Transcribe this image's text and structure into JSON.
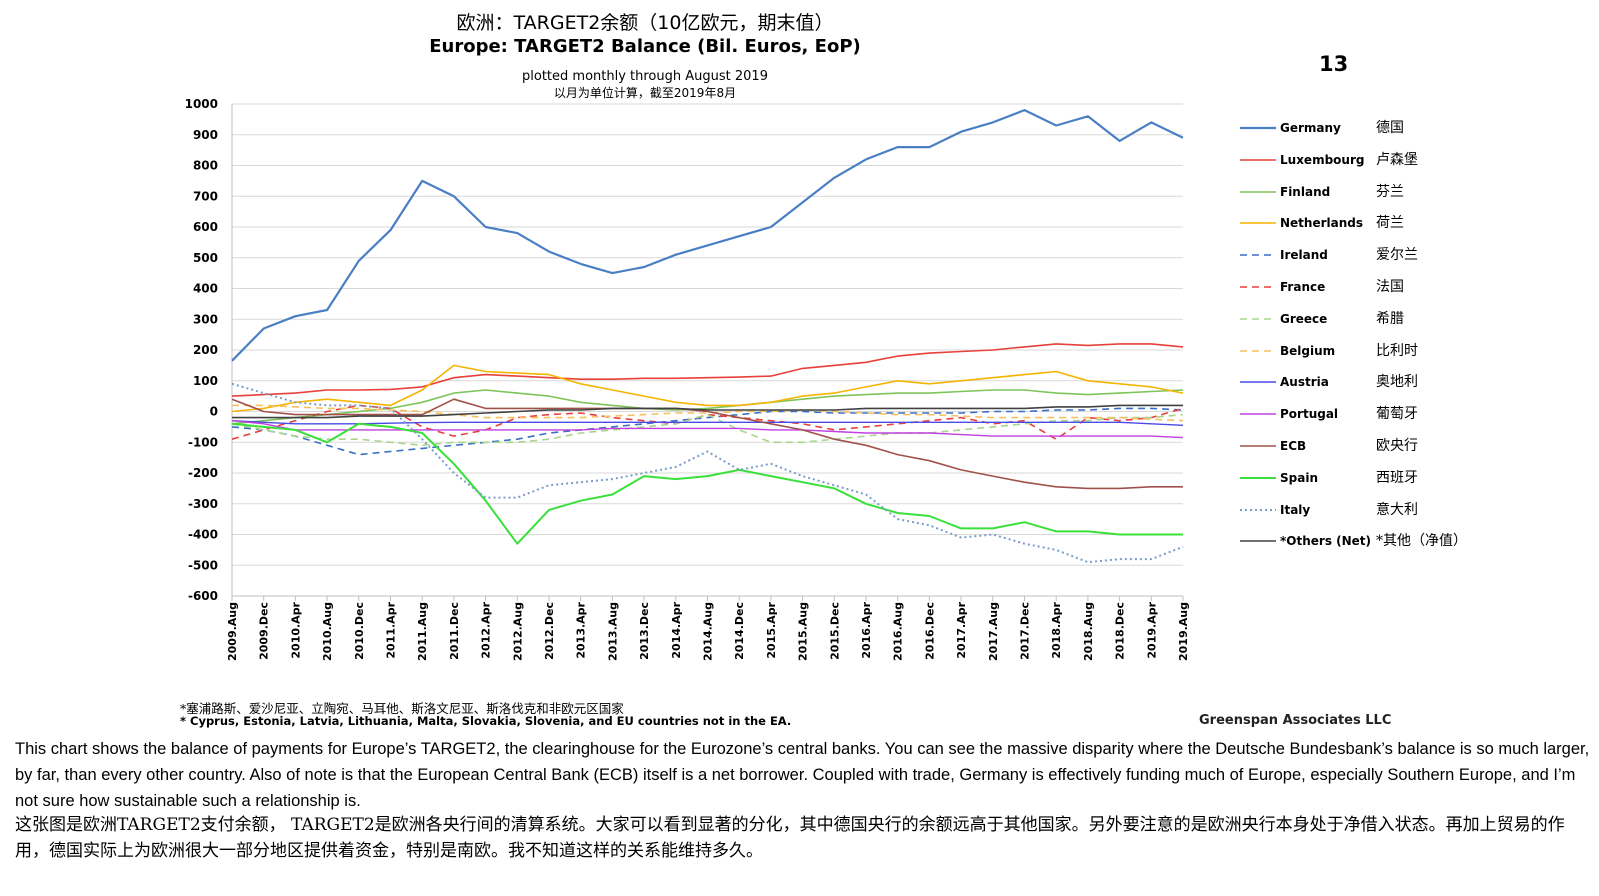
{
  "header": {
    "title_cn": "欧洲：TARGET2余额（10亿欧元，期末值）",
    "title_en": "Europe: TARGET2 Balance (Bil. Euros, EoP)",
    "subtitle_en": "plotted monthly through August 2019",
    "subtitle_cn": "以月为单位计算，截至2019年8月",
    "page_number": "13"
  },
  "chart_data": {
    "type": "line",
    "title": "Europe: TARGET2 Balance (Bil. Euros, EoP)",
    "ylim": [
      -600,
      1000
    ],
    "yticks": [
      1000,
      900,
      800,
      700,
      600,
      500,
      400,
      300,
      200,
      100,
      0,
      -100,
      -200,
      -300,
      -400,
      -500,
      -600
    ],
    "x_tick_labels": [
      "2009.Aug",
      "2009.Dec",
      "2010.Apr",
      "2010.Aug",
      "2010.Dec",
      "2011.Apr",
      "2011.Aug",
      "2011.Dec",
      "2012.Apr",
      "2012.Aug",
      "2012.Dec",
      "2013.Apr",
      "2013.Aug",
      "2013.Dec",
      "2014.Apr",
      "2014.Aug",
      "2014.Dec",
      "2015.Apr",
      "2015.Aug",
      "2015.Dec",
      "2016.Apr",
      "2016.Aug",
      "2016.Dec",
      "2017.Apr",
      "2017.Aug",
      "2017.Dec",
      "2018.Apr",
      "2018.Aug",
      "2018.Dec",
      "2019.Apr",
      "2019.Aug"
    ],
    "grid": "horizontal",
    "legend_position": "right",
    "series": [
      {
        "name": "Germany",
        "name_cn": "德国",
        "color": "#4a7fc4",
        "dash": "solid",
        "width": 2.2,
        "values": [
          165,
          270,
          310,
          330,
          490,
          590,
          750,
          700,
          600,
          580,
          520,
          480,
          450,
          470,
          510,
          540,
          570,
          600,
          680,
          760,
          820,
          860,
          860,
          910,
          940,
          980,
          930,
          960,
          880,
          940,
          890
        ]
      },
      {
        "name": "Luxembourg",
        "name_cn": "卢森堡",
        "color": "#e8403a",
        "dash": "solid",
        "width": 1.6,
        "values": [
          50,
          55,
          60,
          70,
          70,
          72,
          80,
          110,
          120,
          115,
          110,
          105,
          105,
          108,
          108,
          110,
          112,
          115,
          140,
          150,
          160,
          180,
          190,
          195,
          200,
          210,
          220,
          215,
          220,
          220,
          210
        ]
      },
      {
        "name": "Finland",
        "name_cn": "芬兰",
        "color": "#7dc45a",
        "dash": "solid",
        "width": 1.6,
        "values": [
          -40,
          -30,
          -20,
          -10,
          0,
          10,
          30,
          60,
          70,
          60,
          50,
          30,
          20,
          10,
          5,
          10,
          20,
          30,
          40,
          50,
          55,
          60,
          60,
          65,
          70,
          70,
          60,
          55,
          60,
          65,
          70
        ]
      },
      {
        "name": "Netherlands",
        "name_cn": "荷兰",
        "color": "#f5b400",
        "dash": "solid",
        "width": 1.6,
        "values": [
          0,
          10,
          30,
          40,
          30,
          20,
          70,
          150,
          130,
          125,
          120,
          90,
          70,
          50,
          30,
          20,
          20,
          30,
          50,
          60,
          80,
          100,
          90,
          100,
          110,
          120,
          130,
          100,
          90,
          80,
          60
        ]
      },
      {
        "name": "Ireland",
        "name_cn": "爱尔兰",
        "color": "#3a6fc4",
        "dash": "dashed",
        "width": 1.6,
        "values": [
          -50,
          -60,
          -80,
          -110,
          -140,
          -130,
          -120,
          -110,
          -100,
          -90,
          -70,
          -60,
          -50,
          -40,
          -30,
          -20,
          -10,
          0,
          0,
          -5,
          -5,
          -5,
          -5,
          -5,
          0,
          0,
          5,
          5,
          10,
          10,
          5
        ]
      },
      {
        "name": "France",
        "name_cn": "法国",
        "color": "#e8403a",
        "dash": "dashed",
        "width": 1.6,
        "values": [
          -90,
          -60,
          -30,
          0,
          20,
          10,
          -50,
          -80,
          -60,
          -20,
          -10,
          -5,
          -20,
          -30,
          -40,
          -10,
          -20,
          -30,
          -40,
          -60,
          -50,
          -40,
          -30,
          -20,
          -40,
          -30,
          -90,
          -20,
          -30,
          -20,
          10
        ]
      },
      {
        "name": "Greece",
        "name_cn": "希腊",
        "color": "#a7d68a",
        "dash": "dashed",
        "width": 1.6,
        "values": [
          -40,
          -60,
          -80,
          -90,
          -90,
          -100,
          -110,
          -100,
          -100,
          -100,
          -90,
          -70,
          -60,
          -50,
          -40,
          -10,
          -60,
          -100,
          -100,
          -90,
          -80,
          -70,
          -70,
          -60,
          -50,
          -40,
          -30,
          -30,
          -20,
          -20,
          -10
        ]
      },
      {
        "name": "Belgium",
        "name_cn": "比利时",
        "color": "#f5c060",
        "dash": "dashed",
        "width": 1.6,
        "values": [
          20,
          20,
          15,
          10,
          10,
          5,
          0,
          -10,
          -20,
          -20,
          -20,
          -20,
          -15,
          -10,
          -5,
          -5,
          0,
          0,
          5,
          0,
          -5,
          -10,
          -10,
          -15,
          -20,
          -20,
          -20,
          -20,
          -20,
          -25,
          -30
        ]
      },
      {
        "name": "Austria",
        "name_cn": "奥地利",
        "color": "#4a4ae8",
        "dash": "solid",
        "width": 1.4,
        "values": [
          -30,
          -35,
          -40,
          -40,
          -40,
          -38,
          -36,
          -35,
          -35,
          -35,
          -35,
          -35,
          -35,
          -35,
          -35,
          -35,
          -35,
          -35,
          -35,
          -35,
          -35,
          -35,
          -35,
          -35,
          -35,
          -35,
          -35,
          -35,
          -35,
          -40,
          -45
        ]
      },
      {
        "name": "Portugal",
        "name_cn": "葡萄牙",
        "color": "#c040e0",
        "dash": "solid",
        "width": 1.4,
        "values": [
          -30,
          -40,
          -60,
          -60,
          -60,
          -60,
          -60,
          -60,
          -60,
          -60,
          -60,
          -60,
          -55,
          -55,
          -55,
          -55,
          -55,
          -60,
          -60,
          -65,
          -70,
          -70,
          -70,
          -75,
          -80,
          -80,
          -80,
          -80,
          -80,
          -80,
          -85
        ]
      },
      {
        "name": "ECB",
        "name_cn": "欧央行",
        "color": "#a0524a",
        "dash": "solid",
        "width": 1.6,
        "values": [
          40,
          0,
          -10,
          -10,
          -10,
          -10,
          -10,
          40,
          10,
          10,
          10,
          10,
          10,
          10,
          10,
          0,
          -20,
          -40,
          -60,
          -90,
          -110,
          -140,
          -160,
          -190,
          -210,
          -230,
          -245,
          -250,
          -250,
          -245,
          -245
        ]
      },
      {
        "name": "Spain",
        "name_cn": "西班牙",
        "color": "#3ae03a",
        "dash": "solid",
        "width": 2.0,
        "values": [
          -40,
          -50,
          -60,
          -100,
          -40,
          -50,
          -70,
          -170,
          -290,
          -430,
          -320,
          -290,
          -270,
          -210,
          -220,
          -210,
          -190,
          -210,
          -230,
          -250,
          -300,
          -330,
          -340,
          -380,
          -380,
          -360,
          -390,
          -390,
          -400,
          -400,
          -400
        ]
      },
      {
        "name": "Italy",
        "name_cn": "意大利",
        "color": "#7a9cc8",
        "dash": "dotted",
        "width": 2.0,
        "values": [
          90,
          60,
          30,
          20,
          20,
          10,
          -90,
          -200,
          -280,
          -280,
          -240,
          -230,
          -220,
          -200,
          -180,
          -130,
          -190,
          -170,
          -210,
          -240,
          -270,
          -350,
          -370,
          -410,
          -400,
          -430,
          -450,
          -490,
          -480,
          -480,
          -440
        ]
      },
      {
        "name": "*Others (Net)",
        "name_cn": "*其他（净值）",
        "color": "#404040",
        "dash": "solid",
        "width": 1.6,
        "values": [
          -20,
          -20,
          -20,
          -20,
          -15,
          -15,
          -15,
          -10,
          -5,
          0,
          5,
          5,
          10,
          10,
          10,
          5,
          5,
          5,
          5,
          5,
          10,
          10,
          10,
          10,
          10,
          10,
          15,
          15,
          20,
          20,
          20
        ]
      }
    ]
  },
  "footnote": {
    "cn": "*塞浦路斯、爱沙尼亚、立陶宛、马耳他、斯洛文尼亚、斯洛伐克和非欧元区国家",
    "en": "* Cyprus, Estonia, Latvia, Lithuania, Malta, Slovakia, Slovenia, and EU countries not in the EA."
  },
  "source": "Greenspan Associates LLC",
  "caption": {
    "en": "This chart shows the balance of payments for Europe’s TARGET2, the clearinghouse for the Eurozone’s central banks. You can see the massive disparity where the Deutsche Bundesbank’s balance is so much larger, by far, than every other country. Also of note is that the European Central Bank (ECB) itself is a net borrower. Coupled with trade, Germany is effectively funding much of Europe, especially Southern Europe, and I’m not sure how sustainable such a relationship is.",
    "cn": "这张图是欧洲TARGET2支付余额， TARGET2是欧洲各央行间的清算系统。大家可以看到显著的分化，其中德国央行的余额远高于其他国家。另外要注意的是欧洲央行本身处于净借入状态。再加上贸易的作用，德国实际上为欧洲很大一部分地区提供着资金，特别是南欧。我不知道这样的关系能维持多久。"
  }
}
